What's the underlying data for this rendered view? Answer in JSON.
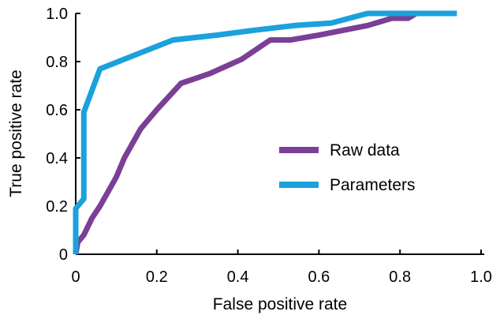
{
  "chart_data": {
    "type": "line",
    "title": "",
    "xlabel": "False positive rate",
    "ylabel": "True positive rate",
    "xlim": [
      0,
      1
    ],
    "ylim": [
      0,
      1
    ],
    "x_ticks": [
      0,
      0.2,
      0.4,
      0.6,
      0.8,
      1.0
    ],
    "x_tick_labels": [
      "0",
      "0.2",
      "0.4",
      "0.6",
      "0.8",
      "1.0"
    ],
    "y_ticks": [
      0,
      0.2,
      0.4,
      0.6,
      0.8,
      1.0
    ],
    "y_tick_labels": [
      "0",
      "0.2",
      "0.4",
      "0.6",
      "0.8",
      "1.0"
    ],
    "grid": false,
    "legend_position": "center-right",
    "series": [
      {
        "name": "Raw data",
        "color": "#7b3f96",
        "points": [
          [
            0.0,
            0.0
          ],
          [
            0.005,
            0.05
          ],
          [
            0.02,
            0.08
          ],
          [
            0.04,
            0.15
          ],
          [
            0.06,
            0.2
          ],
          [
            0.1,
            0.32
          ],
          [
            0.12,
            0.4
          ],
          [
            0.16,
            0.52
          ],
          [
            0.2,
            0.6
          ],
          [
            0.26,
            0.71
          ],
          [
            0.33,
            0.75
          ],
          [
            0.41,
            0.81
          ],
          [
            0.48,
            0.89
          ],
          [
            0.53,
            0.89
          ],
          [
            0.6,
            0.91
          ],
          [
            0.72,
            0.95
          ],
          [
            0.78,
            0.98
          ],
          [
            0.82,
            0.98
          ],
          [
            0.84,
            1.0
          ],
          [
            0.94,
            1.0
          ]
        ]
      },
      {
        "name": "Parameters",
        "color": "#1ba1dc",
        "points": [
          [
            0.0,
            0.0
          ],
          [
            0.0,
            0.19
          ],
          [
            0.02,
            0.23
          ],
          [
            0.02,
            0.59
          ],
          [
            0.06,
            0.77
          ],
          [
            0.15,
            0.83
          ],
          [
            0.24,
            0.89
          ],
          [
            0.35,
            0.91
          ],
          [
            0.44,
            0.93
          ],
          [
            0.54,
            0.95
          ],
          [
            0.63,
            0.96
          ],
          [
            0.72,
            1.0
          ],
          [
            0.94,
            1.0
          ]
        ]
      }
    ]
  }
}
